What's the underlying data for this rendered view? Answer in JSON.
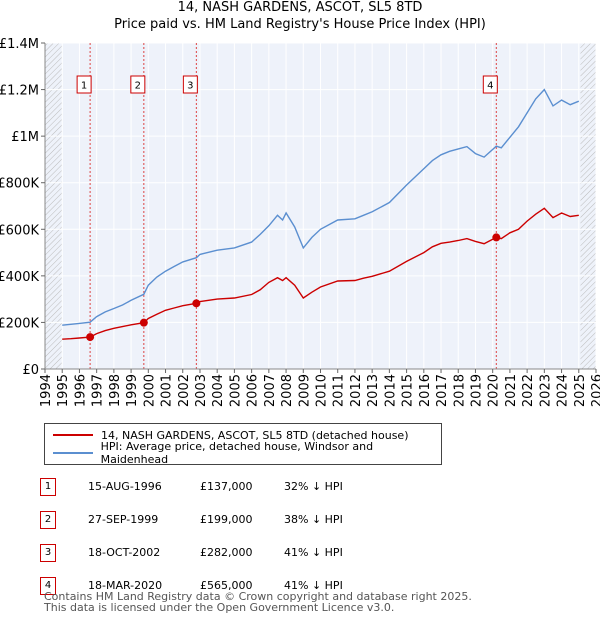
{
  "title_line1": "14, NASH GARDENS, ASCOT, SL5 8TD",
  "title_line2": "Price paid vs. HM Land Registry's House Price Index (HPI)",
  "chart_data": {
    "type": "line",
    "xlim": [
      1994,
      2026
    ],
    "ylim": [
      0,
      1400000
    ],
    "y_ticks": [
      0,
      200000,
      400000,
      600000,
      800000,
      1000000,
      1200000,
      1400000
    ],
    "y_tick_labels": [
      "£0",
      "£200K",
      "£400K",
      "£600K",
      "£800K",
      "£1M",
      "£1.2M",
      "£1.4M"
    ],
    "x_ticks": [
      1994,
      1995,
      1996,
      1997,
      1998,
      1999,
      2000,
      2001,
      2002,
      2003,
      2004,
      2005,
      2006,
      2007,
      2008,
      2009,
      2010,
      2011,
      2012,
      2013,
      2014,
      2015,
      2016,
      2017,
      2018,
      2019,
      2020,
      2021,
      2022,
      2023,
      2024,
      2025,
      2026
    ],
    "x_tick_labels": [
      "1994",
      "1995",
      "1996",
      "1997",
      "1998",
      "1999",
      "2000",
      "2001",
      "2002",
      "2003",
      "2004",
      "2005",
      "2006",
      "2007",
      "2008",
      "2009",
      "2010",
      "2011",
      "2012",
      "2013",
      "2014",
      "2015",
      "2016",
      "2017",
      "2018",
      "2019",
      "2020",
      "2021",
      "2022",
      "2023",
      "2024",
      "2025",
      "2026"
    ],
    "hatched_ranges": [
      [
        1994,
        1995
      ],
      [
        2025.1,
        2026
      ]
    ],
    "series": [
      {
        "name": "14, NASH GARDENS, ASCOT, SL5 8TD (detached house)",
        "color": "#cc0000",
        "x": [
          1995.0,
          1995.5,
          1996.0,
          1996.62,
          1997.0,
          1997.5,
          1998.0,
          1998.5,
          1999.0,
          1999.74,
          2000.0,
          2000.5,
          2001.0,
          2001.5,
          2002.0,
          2002.79,
          2003.0,
          2004.0,
          2005.0,
          2006.0,
          2006.5,
          2007.0,
          2007.5,
          2007.8,
          2008.0,
          2008.5,
          2009.0,
          2009.5,
          2010.0,
          2011.0,
          2012.0,
          2012.5,
          2013.0,
          2014.0,
          2015.0,
          2016.0,
          2016.5,
          2017.0,
          2017.5,
          2018.0,
          2018.5,
          2019.0,
          2019.5,
          2020.21,
          2020.5,
          2021.0,
          2021.5,
          2022.0,
          2022.5,
          2023.0,
          2023.5,
          2024.0,
          2024.5,
          2025.0
        ],
        "y": [
          128000,
          130000,
          133000,
          137000,
          152000,
          165000,
          175000,
          182000,
          190000,
          199000,
          217000,
          235000,
          252000,
          262000,
          272000,
          282000,
          290000,
          300000,
          305000,
          320000,
          340000,
          372000,
          392000,
          380000,
          392000,
          360000,
          305000,
          330000,
          352000,
          378000,
          380000,
          390000,
          398000,
          420000,
          462000,
          500000,
          525000,
          540000,
          545000,
          552000,
          560000,
          548000,
          538000,
          565000,
          560000,
          585000,
          600000,
          635000,
          665000,
          690000,
          650000,
          670000,
          655000,
          660000
        ]
      },
      {
        "name": "HPI: Average price, detached house, Windsor and Maidenhead",
        "color": "#5b8fd0",
        "x": [
          1995.0,
          1995.5,
          1996.0,
          1996.62,
          1997.0,
          1997.5,
          1998.0,
          1998.5,
          1999.0,
          1999.74,
          2000.0,
          2000.5,
          2001.0,
          2001.5,
          2002.0,
          2002.79,
          2003.0,
          2004.0,
          2005.0,
          2006.0,
          2006.5,
          2007.0,
          2007.5,
          2007.8,
          2008.0,
          2008.5,
          2009.0,
          2009.5,
          2010.0,
          2011.0,
          2012.0,
          2012.5,
          2013.0,
          2014.0,
          2015.0,
          2016.0,
          2016.5,
          2017.0,
          2017.5,
          2018.0,
          2018.5,
          2019.0,
          2019.5,
          2020.21,
          2020.5,
          2021.0,
          2021.5,
          2022.0,
          2022.5,
          2023.0,
          2023.5,
          2024.0,
          2024.5,
          2025.0
        ],
        "y": [
          188000,
          192000,
          196000,
          201000,
          225000,
          245000,
          260000,
          275000,
          295000,
          321000,
          360000,
          395000,
          420000,
          440000,
          460000,
          478000,
          492000,
          510000,
          520000,
          545000,
          578000,
          615000,
          660000,
          640000,
          670000,
          610000,
          520000,
          565000,
          600000,
          640000,
          645000,
          660000,
          675000,
          715000,
          790000,
          860000,
          895000,
          920000,
          935000,
          945000,
          955000,
          925000,
          910000,
          957000,
          950000,
          995000,
          1040000,
          1100000,
          1160000,
          1200000,
          1130000,
          1155000,
          1135000,
          1150000
        ]
      }
    ],
    "sales": [
      {
        "label": "1",
        "x": 1996.62,
        "y": 137000
      },
      {
        "label": "2",
        "x": 1999.74,
        "y": 199000
      },
      {
        "label": "3",
        "x": 2002.79,
        "y": 282000
      },
      {
        "label": "4",
        "x": 2020.21,
        "y": 565000
      }
    ]
  },
  "legend": {
    "red_label": "14, NASH GARDENS, ASCOT, SL5 8TD (detached house)",
    "blue_label": "HPI: Average price, detached house, Windsor and Maidenhead"
  },
  "transactions": [
    {
      "num": "1",
      "date": "15-AUG-1996",
      "price": "£137,000",
      "hpi": "32% ↓ HPI"
    },
    {
      "num": "2",
      "date": "27-SEP-1999",
      "price": "£199,000",
      "hpi": "38% ↓ HPI"
    },
    {
      "num": "3",
      "date": "18-OCT-2002",
      "price": "£282,000",
      "hpi": "41% ↓ HPI"
    },
    {
      "num": "4",
      "date": "18-MAR-2020",
      "price": "£565,000",
      "hpi": "41% ↓ HPI"
    }
  ],
  "footer_line1": "Contains HM Land Registry data © Crown copyright and database right 2025.",
  "footer_line2": "This data is licensed under the Open Government Licence v3.0."
}
